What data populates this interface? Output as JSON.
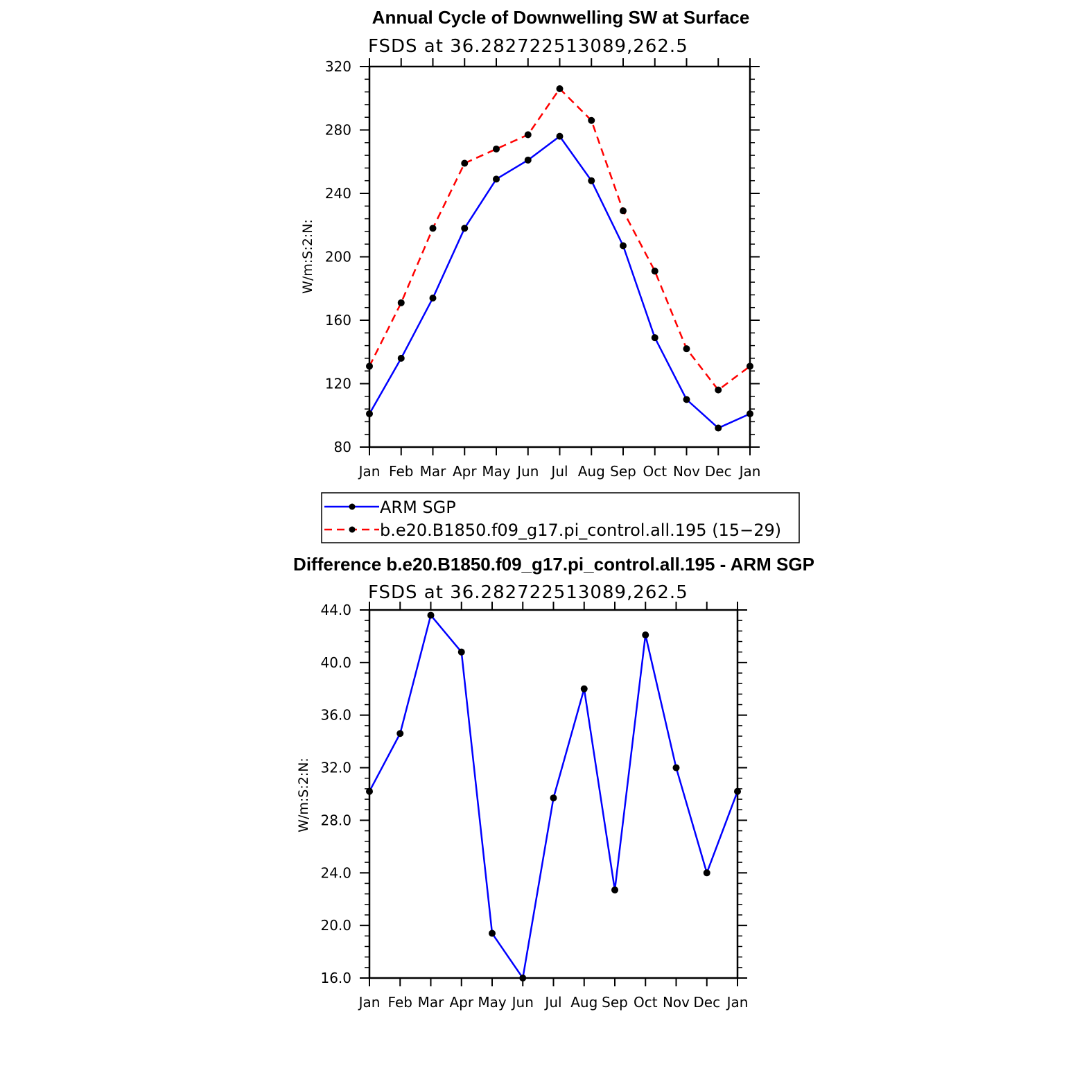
{
  "chart_data": [
    {
      "type": "line",
      "title": "Annual Cycle of Downwelling SW at Surface",
      "subtitle": "FSDS at 36.282722513089,262.5",
      "ylabel": "W/m:S:2:N:",
      "categories": [
        "Jan",
        "Feb",
        "Mar",
        "Apr",
        "May",
        "Jun",
        "Jul",
        "Aug",
        "Sep",
        "Oct",
        "Nov",
        "Dec",
        "Jan"
      ],
      "ylim": [
        80,
        320
      ],
      "yticks": [
        "80",
        "120",
        "160",
        "200",
        "240",
        "280",
        "320"
      ],
      "series": [
        {
          "name": "ARM SGP",
          "color": "#0000ff",
          "dash": "solid",
          "values": [
            101,
            136,
            174,
            218,
            249,
            261,
            276,
            248,
            207,
            149,
            110,
            92,
            101
          ]
        },
        {
          "name": "b.e20.B1850.f09_g17.pi_control.all.195 (15−29)",
          "color": "#ff0000",
          "dash": "dashed",
          "values": [
            131,
            171,
            218,
            259,
            268,
            277,
            306,
            286,
            229,
            191,
            142,
            116,
            131
          ]
        }
      ],
      "legend": "below"
    },
    {
      "type": "line",
      "title": "Difference b.e20.B1850.f09_g17.pi_control.all.195 - ARM SGP",
      "subtitle": "FSDS at 36.282722513089,262.5",
      "ylabel": "W/m:S:2:N:",
      "categories": [
        "Jan",
        "Feb",
        "Mar",
        "Apr",
        "May",
        "Jun",
        "Jul",
        "Aug",
        "Sep",
        "Oct",
        "Nov",
        "Dec",
        "Jan"
      ],
      "ylim": [
        16,
        44
      ],
      "yticks": [
        "16.0",
        "20.0",
        "24.0",
        "28.0",
        "32.0",
        "36.0",
        "40.0",
        "44.0"
      ],
      "series": [
        {
          "color": "#0000ff",
          "dash": "solid",
          "values": [
            30.2,
            34.6,
            43.6,
            40.8,
            19.4,
            16.0,
            29.7,
            38.0,
            22.7,
            42.1,
            32.0,
            24.0,
            30.2
          ]
        }
      ]
    }
  ]
}
